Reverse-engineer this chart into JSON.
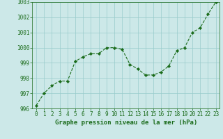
{
  "x": [
    0,
    1,
    2,
    3,
    4,
    5,
    6,
    7,
    8,
    9,
    10,
    11,
    12,
    13,
    14,
    15,
    16,
    17,
    18,
    19,
    20,
    21,
    22,
    23
  ],
  "y": [
    996.2,
    997.0,
    997.5,
    997.8,
    997.8,
    999.1,
    999.4,
    999.6,
    999.6,
    1000.0,
    1000.0,
    999.9,
    998.9,
    998.6,
    998.2,
    998.2,
    998.4,
    998.8,
    999.8,
    1000.0,
    1001.0,
    1001.3,
    1002.2,
    1003.0
  ],
  "line_color": "#1a6b1a",
  "marker_color": "#1a6b1a",
  "bg_color": "#cce8e8",
  "grid_color": "#99cccc",
  "xlabel": "Graphe pression niveau de la mer (hPa)",
  "ylim": [
    996,
    1003
  ],
  "xlim_min": -0.5,
  "xlim_max": 23.5,
  "yticks": [
    996,
    997,
    998,
    999,
    1000,
    1001,
    1002,
    1003
  ],
  "xticks": [
    0,
    1,
    2,
    3,
    4,
    5,
    6,
    7,
    8,
    9,
    10,
    11,
    12,
    13,
    14,
    15,
    16,
    17,
    18,
    19,
    20,
    21,
    22,
    23
  ],
  "tick_fontsize": 5.5,
  "xlabel_fontsize": 6.5,
  "line_width": 0.8,
  "marker_size": 2.2
}
